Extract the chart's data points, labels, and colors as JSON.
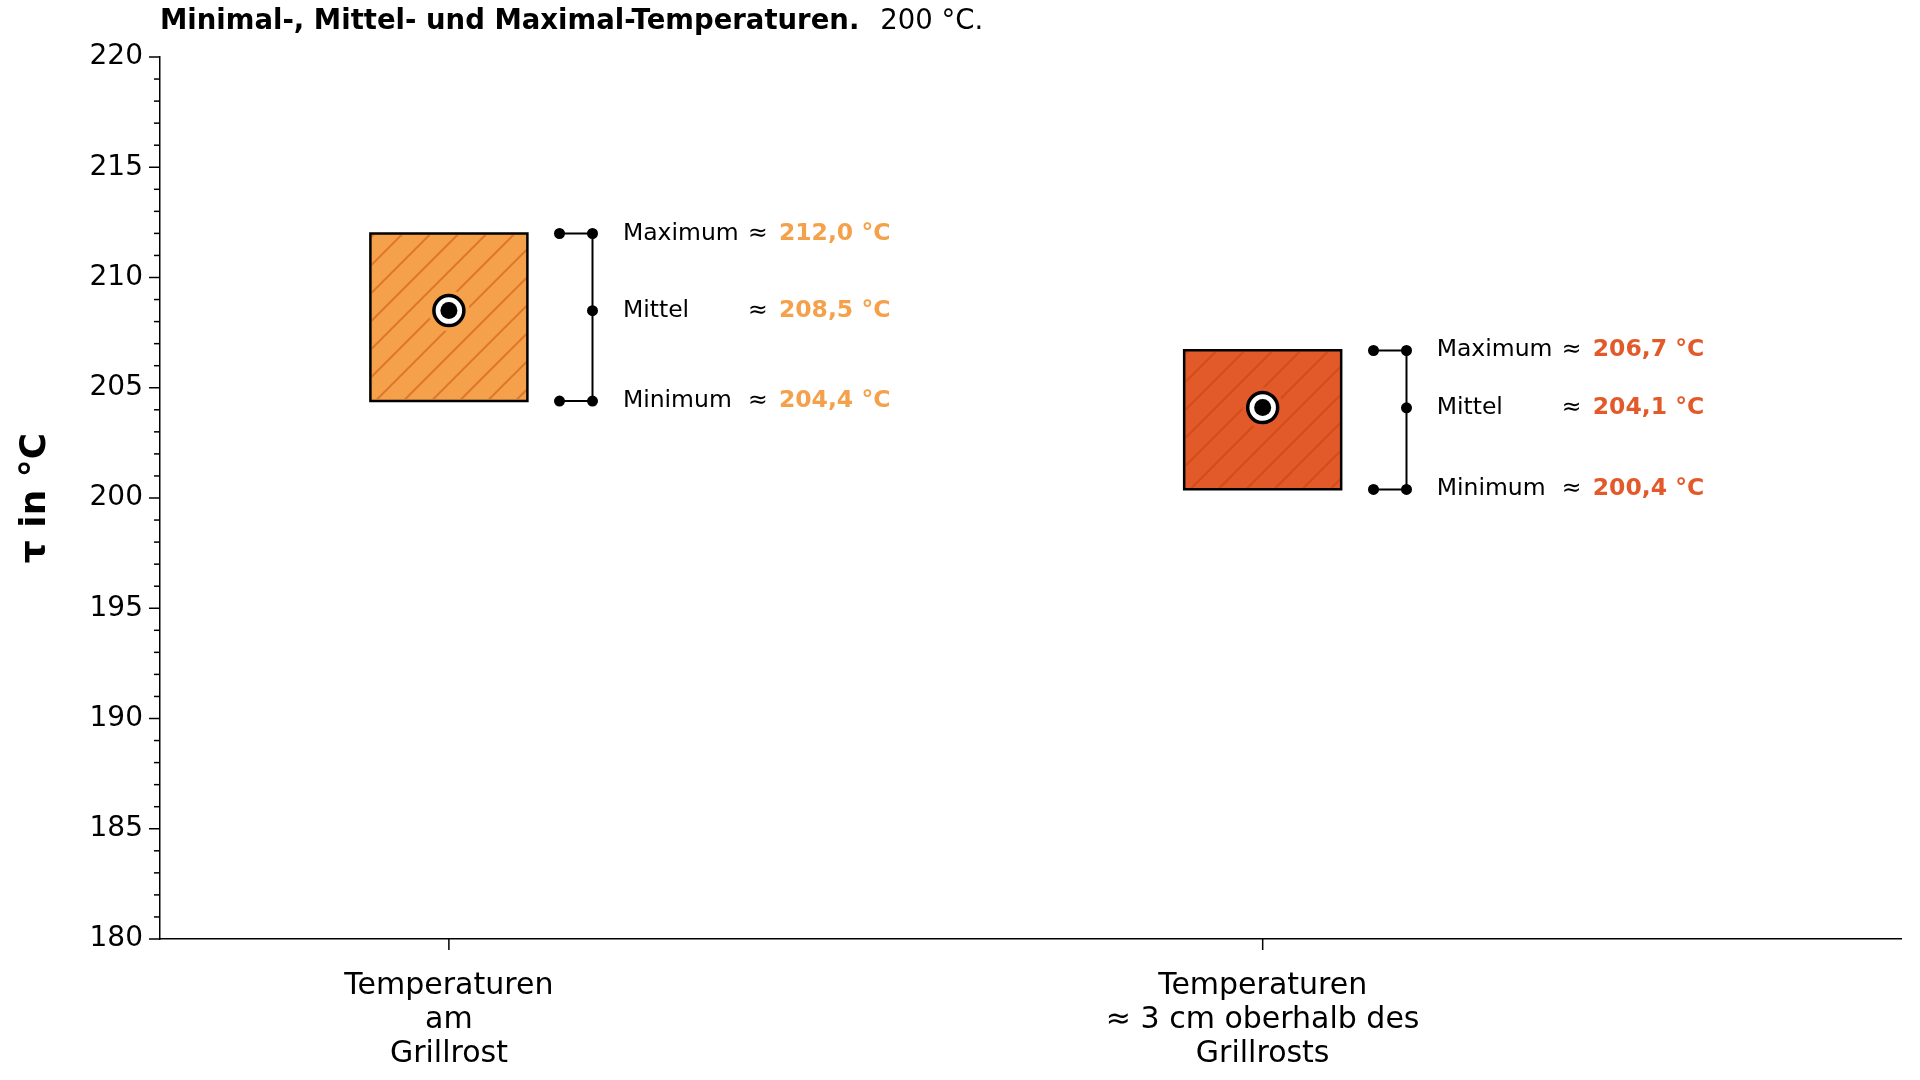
{
  "chart_data": {
    "type": "bar",
    "title": "Minimal-, Mittel- und Maximal-Temperaturen.",
    "subtitle": "200 °C.",
    "ylabel": "τ in °C",
    "categories": [
      "Temperaturen\nam\nGrillrost",
      "Temperaturen\n≈ 3 cm oberhalb des\nGrillrosts"
    ],
    "series": [
      {
        "base": [
          204.4,
          200.4
        ],
        "values": [
          7.6,
          6.3
        ],
        "colors": [
          "#f5a04a",
          "#e2592a"
        ]
      },
      {
        "type": "scatter",
        "x": [
          "Temperaturen\nam\nGrillrost",
          "Temperaturen\n≈ 3 cm oberhalb des\nGrillrosts"
        ],
        "values": [
          208.5,
          204.1
        ],
        "color": "#000000",
        "marker": "circle"
      }
    ],
    "ylim": [
      180,
      220
    ],
    "yticks": [
      180,
      {
        "value": 181,
        "label": null
      },
      {
        "value": 182,
        "label": null
      },
      {
        "value": 183,
        "label": null
      },
      {
        "value": 184,
        "label": null
      },
      185,
      {
        "value": 186,
        "label": null
      },
      {
        "value": 187,
        "label": null
      },
      {
        "value": 188,
        "label": null
      },
      {
        "value": 189,
        "label": null
      },
      190,
      {
        "value": 191,
        "label": null
      },
      {
        "value": 192,
        "label": null
      },
      {
        "value": 193,
        "label": null
      },
      {
        "value": 194,
        "label": null
      },
      195,
      {
        "value": 196,
        "label": null
      },
      {
        "value": 197,
        "label": null
      },
      {
        "value": 198,
        "label": null
      },
      {
        "value": 199,
        "label": null
      },
      200,
      {
        "value": 201,
        "label": null
      },
      {
        "value": 202,
        "label": null
      },
      {
        "value": 203,
        "label": null
      },
      {
        "value": 204,
        "label": null
      },
      205,
      {
        "value": 206,
        "label": null
      },
      {
        "value": 207,
        "label": null
      },
      {
        "value": 208,
        "label": null
      },
      {
        "value": 209,
        "label": null
      },
      210,
      {
        "value": 211,
        "label": null
      },
      {
        "value": 212,
        "label": null
      },
      {
        "value": 213,
        "label": null
      },
      {
        "value": 214,
        "label": null
      },
      215,
      {
        "value": 216,
        "label": null
      },
      {
        "value": 217,
        "label": null
      },
      {
        "value": 218,
        "label": null
      },
      {
        "value": 219,
        "label": null
      },
      220
    ],
    "grid": false,
    "annotations": [
      "Maximum",
      "≈",
      "212,0 °C",
      "Mittel",
      "≈",
      "208,5 °C",
      "Minimum",
      "≈",
      "204,4 °C",
      "Maximum",
      "≈",
      "206,7 °C",
      "Mittel",
      "≈",
      "204,1 °C",
      "Minimum",
      "≈",
      "200,4 °C"
    ]
  }
}
